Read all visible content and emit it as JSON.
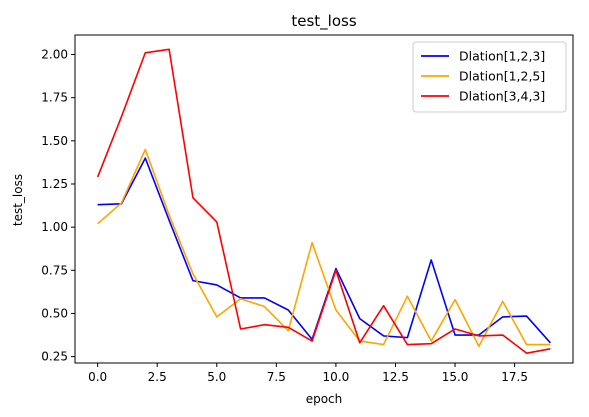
{
  "chart_data": {
    "type": "line",
    "title": "test_loss",
    "xlabel": "epoch",
    "ylabel": "test_loss",
    "x": [
      0,
      1,
      2,
      3,
      4,
      5,
      6,
      7,
      8,
      9,
      10,
      11,
      12,
      13,
      14,
      15,
      16,
      17,
      18,
      19
    ],
    "xlim": [
      -0.95,
      19.95
    ],
    "ylim": [
      0.213,
      2.113
    ],
    "xticks": [
      0.0,
      2.5,
      5.0,
      7.5,
      10.0,
      12.5,
      15.0,
      17.5
    ],
    "xtick_labels": [
      "0.0",
      "2.5",
      "5.0",
      "7.5",
      "10.0",
      "12.5",
      "15.0",
      "17.5"
    ],
    "yticks": [
      0.25,
      0.5,
      0.75,
      1.0,
      1.25,
      1.5,
      1.75,
      2.0
    ],
    "ytick_labels": [
      "0.25",
      "0.50",
      "0.75",
      "1.00",
      "1.25",
      "1.50",
      "1.75",
      "2.00"
    ],
    "grid": false,
    "legend_position": "top-right",
    "series": [
      {
        "name": "Dlation[1,2,3]",
        "color": "#0000ff",
        "values": [
          1.13,
          1.135,
          1.4,
          1.04,
          0.69,
          0.665,
          0.59,
          0.59,
          0.52,
          0.35,
          0.76,
          0.47,
          0.37,
          0.36,
          0.81,
          0.375,
          0.375,
          0.48,
          0.485,
          0.33
        ]
      },
      {
        "name": "Dlation[1,2,5]",
        "color": "#ffa500",
        "values": [
          1.02,
          1.14,
          1.45,
          1.07,
          0.73,
          0.48,
          0.585,
          0.54,
          0.4,
          0.91,
          0.52,
          0.34,
          0.32,
          0.6,
          0.34,
          0.58,
          0.31,
          0.57,
          0.32,
          0.32
        ]
      },
      {
        "name": "Dlation[3,4,3]",
        "color": "#ff0000",
        "values": [
          1.29,
          1.64,
          2.01,
          2.03,
          1.17,
          1.03,
          0.41,
          0.435,
          0.42,
          0.34,
          0.75,
          0.33,
          0.545,
          0.32,
          0.325,
          0.41,
          0.37,
          0.375,
          0.27,
          0.295
        ]
      }
    ]
  }
}
